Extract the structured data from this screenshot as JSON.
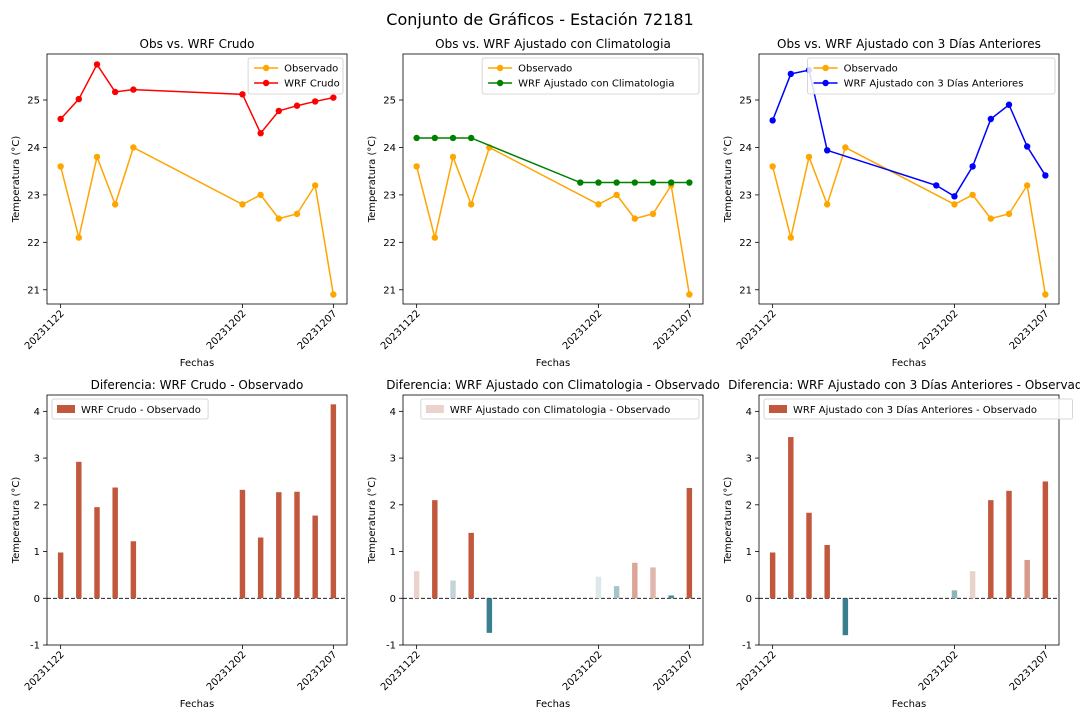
{
  "figure": {
    "title": "Conjunto de Gráficos - Estación 72181"
  },
  "colors": {
    "observado": "#ffa500",
    "crudo": "#ff0000",
    "climatologia": "#008000",
    "tres_dias": "#0000ff",
    "diff_pos_strong": "#c1583d",
    "diff_neg_strong": "#3a7f8d"
  },
  "chart_data": [
    {
      "type": "line",
      "title": "Obs vs. WRF Crudo",
      "xlabel": "Fechas",
      "ylabel": "Temperatura (°C)",
      "ylim": [
        20.7,
        25.97
      ],
      "yticks": [
        21,
        22,
        23,
        24,
        25
      ],
      "x": [
        "20231122",
        "20231123",
        "20231124",
        "20231125",
        "20231126",
        "20231127",
        "20231128",
        "20231129",
        "20231130",
        "20231201",
        "20231202",
        "20231203",
        "20231204",
        "20231205",
        "20231206",
        "20231207"
      ],
      "x_tick_labels": [
        "20231122",
        "20231202",
        "20231207"
      ],
      "legend": "upper right",
      "grid": false,
      "series": [
        {
          "name": "Observado",
          "color": "#ffa500",
          "x": [
            "20231122",
            "20231123",
            "20231124",
            "20231125",
            "20231126",
            "20231202",
            "20231203",
            "20231204",
            "20231205",
            "20231206",
            "20231207"
          ],
          "values": [
            23.6,
            22.1,
            23.8,
            22.8,
            24.0,
            22.8,
            23.0,
            22.5,
            22.6,
            23.2,
            20.9
          ]
        },
        {
          "name": "WRF Crudo",
          "color": "#ff0000",
          "x": [
            "20231122",
            "20231123",
            "20231124",
            "20231125",
            "20231126",
            "20231202",
            "20231203",
            "20231204",
            "20231205",
            "20231206",
            "20231207"
          ],
          "values": [
            24.6,
            25.02,
            25.75,
            25.17,
            25.22,
            25.12,
            24.3,
            24.77,
            24.88,
            24.97,
            25.05
          ]
        }
      ]
    },
    {
      "type": "line",
      "title": "Obs vs. WRF Ajustado con Climatologia",
      "xlabel": "Fechas",
      "ylabel": "Temperatura (°C)",
      "ylim": [
        20.7,
        25.97
      ],
      "yticks": [
        21,
        22,
        23,
        24,
        25
      ],
      "x": [
        "20231122",
        "20231123",
        "20231124",
        "20231125",
        "20231126",
        "20231127",
        "20231128",
        "20231129",
        "20231130",
        "20231201",
        "20231202",
        "20231203",
        "20231204",
        "20231205",
        "20231206",
        "20231207"
      ],
      "x_tick_labels": [
        "20231122",
        "20231202",
        "20231207"
      ],
      "legend": "upper right",
      "grid": false,
      "series": [
        {
          "name": "Observado",
          "color": "#ffa500",
          "x": [
            "20231122",
            "20231123",
            "20231124",
            "20231125",
            "20231126",
            "20231202",
            "20231203",
            "20231204",
            "20231205",
            "20231206",
            "20231207"
          ],
          "values": [
            23.6,
            22.1,
            23.8,
            22.8,
            24.0,
            22.8,
            23.0,
            22.5,
            22.6,
            23.2,
            20.9
          ]
        },
        {
          "name": "WRF Ajustado con Climatologia",
          "color": "#008000",
          "x": [
            "20231122",
            "20231123",
            "20231124",
            "20231125",
            "20231201",
            "20231202",
            "20231203",
            "20231204",
            "20231205",
            "20231206",
            "20231207"
          ],
          "values": [
            24.2,
            24.2,
            24.2,
            24.2,
            23.26,
            23.26,
            23.26,
            23.26,
            23.26,
            23.26,
            23.26
          ]
        }
      ]
    },
    {
      "type": "line",
      "title": "Obs vs. WRF Ajustado con 3 Días Anteriores",
      "xlabel": "Fechas",
      "ylabel": "Temperatura (°C)",
      "ylim": [
        20.7,
        25.97
      ],
      "yticks": [
        21,
        22,
        23,
        24,
        25
      ],
      "x": [
        "20231122",
        "20231123",
        "20231124",
        "20231125",
        "20231126",
        "20231127",
        "20231128",
        "20231129",
        "20231130",
        "20231201",
        "20231202",
        "20231203",
        "20231204",
        "20231205",
        "20231206",
        "20231207"
      ],
      "x_tick_labels": [
        "20231122",
        "20231202",
        "20231207"
      ],
      "legend": "upper right",
      "grid": false,
      "series": [
        {
          "name": "Observado",
          "color": "#ffa500",
          "x": [
            "20231122",
            "20231123",
            "20231124",
            "20231125",
            "20231126",
            "20231202",
            "20231203",
            "20231204",
            "20231205",
            "20231206",
            "20231207"
          ],
          "values": [
            23.6,
            22.1,
            23.8,
            22.8,
            24.0,
            22.8,
            23.0,
            22.5,
            22.6,
            23.2,
            20.9
          ]
        },
        {
          "name": "WRF Ajustado con 3 Días Anteriores",
          "color": "#0000ff",
          "x": [
            "20231122",
            "20231123",
            "20231124",
            "20231125",
            "20231201",
            "20231202",
            "20231203",
            "20231204",
            "20231205",
            "20231206",
            "20231207"
          ],
          "values": [
            24.57,
            25.55,
            25.63,
            23.94,
            23.2,
            22.97,
            23.6,
            24.6,
            24.9,
            24.02,
            23.41
          ]
        }
      ]
    },
    {
      "type": "bar",
      "title": "Diferencia: WRF Crudo - Observado",
      "xlabel": "Fechas",
      "ylabel": "Temperatura (°C)",
      "ylim": [
        -1,
        4.35
      ],
      "yticks": [
        -1,
        0,
        1,
        2,
        3,
        4
      ],
      "categories": [
        "20231122",
        "20231123",
        "20231124",
        "20231125",
        "20231126",
        "20231202",
        "20231203",
        "20231204",
        "20231205",
        "20231206",
        "20231207"
      ],
      "x_tick_labels": [
        "20231122",
        "20231202",
        "20231207"
      ],
      "legend": "upper left",
      "grid": false,
      "zero_line": true,
      "series": [
        {
          "name": "WRF Crudo - Observado",
          "values": [
            0.98,
            2.92,
            1.95,
            2.37,
            1.22,
            2.32,
            1.3,
            2.27,
            2.28,
            1.77,
            4.15
          ],
          "colors": [
            "#c1583d",
            "#c1583d",
            "#c1583d",
            "#c1583d",
            "#c1583d",
            "#c1583d",
            "#c1583d",
            "#c1583d",
            "#c1583d",
            "#c1583d",
            "#c1583d"
          ]
        }
      ]
    },
    {
      "type": "bar",
      "title": "Diferencia: WRF Ajustado con Climatologia - Observado",
      "xlabel": "Fechas",
      "ylabel": "Temperatura (°C)",
      "ylim": [
        -1,
        4.35
      ],
      "yticks": [
        -1,
        0,
        1,
        2,
        3,
        4
      ],
      "categories": [
        "20231122",
        "20231123",
        "20231124",
        "20231125",
        "20231126",
        "20231202",
        "20231203",
        "20231204",
        "20231205",
        "20231206",
        "20231207"
      ],
      "x_tick_labels": [
        "20231122",
        "20231202",
        "20231207"
      ],
      "legend": "upper right",
      "grid": false,
      "zero_line": true,
      "series": [
        {
          "name": "WRF Ajustado con Climatologia - Observado",
          "values": [
            0.58,
            2.1,
            0.38,
            1.4,
            -0.74,
            0.46,
            0.26,
            0.76,
            0.66,
            0.06,
            2.36
          ],
          "colors": [
            "#ead3cd",
            "#c1583d",
            "#c3d5da",
            "#c1583d",
            "#3a7f8d",
            "#dde8ea",
            "#a7c4ca",
            "#dda497",
            "#e1b6ac",
            "#4b8994",
            "#c1583d"
          ]
        }
      ]
    },
    {
      "type": "bar",
      "title": "Diferencia: WRF Ajustado con 3 Días Anteriores - Observado",
      "xlabel": "Fechas",
      "ylabel": "Temperatura (°C)",
      "ylim": [
        -1,
        4.35
      ],
      "yticks": [
        -1,
        0,
        1,
        2,
        3,
        4
      ],
      "categories": [
        "20231122",
        "20231123",
        "20231124",
        "20231125",
        "20231126",
        "20231202",
        "20231203",
        "20231204",
        "20231205",
        "20231206",
        "20231207"
      ],
      "x_tick_labels": [
        "20231122",
        "20231202",
        "20231207"
      ],
      "legend": "upper left",
      "grid": false,
      "zero_line": true,
      "series": [
        {
          "name": "WRF Ajustado con 3 Días Anteriores - Observado",
          "values": [
            0.98,
            3.45,
            1.83,
            1.14,
            -0.79,
            0.17,
            0.58,
            2.1,
            2.3,
            0.82,
            2.5
          ],
          "colors": [
            "#c1583d",
            "#c1583d",
            "#c1583d",
            "#c1583d",
            "#3a7f8d",
            "#8fb3ba",
            "#ead3cd",
            "#c1583d",
            "#c1583d",
            "#d8988a",
            "#c1583d"
          ]
        }
      ]
    }
  ]
}
